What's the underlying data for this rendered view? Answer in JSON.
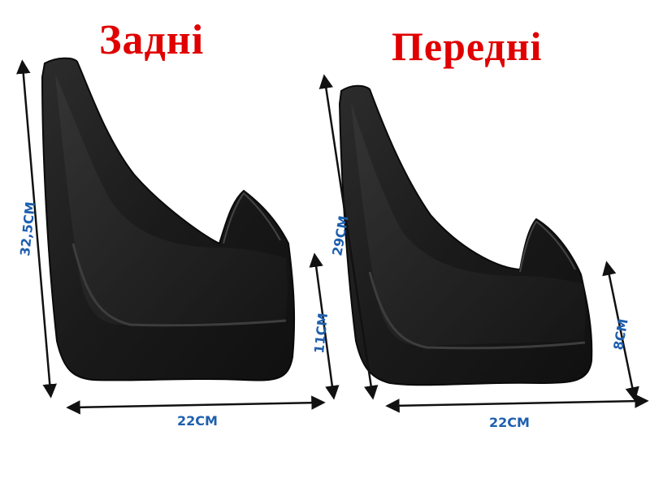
{
  "rear": {
    "title": "Задні",
    "height_label": "32,5СМ",
    "short_height_label": "11СМ",
    "width_label": "22СМ"
  },
  "front": {
    "title": "Передні",
    "height_label": "29СМ",
    "short_height_label": "8СМ",
    "width_label": "22СМ"
  },
  "colors": {
    "title": "#e00000",
    "dimension_text": "#1e5fae",
    "arrow": "#111111",
    "mudflap_dark": "#161616",
    "mudflap_mid": "#2a2a2a",
    "background": "#ffffff"
  }
}
